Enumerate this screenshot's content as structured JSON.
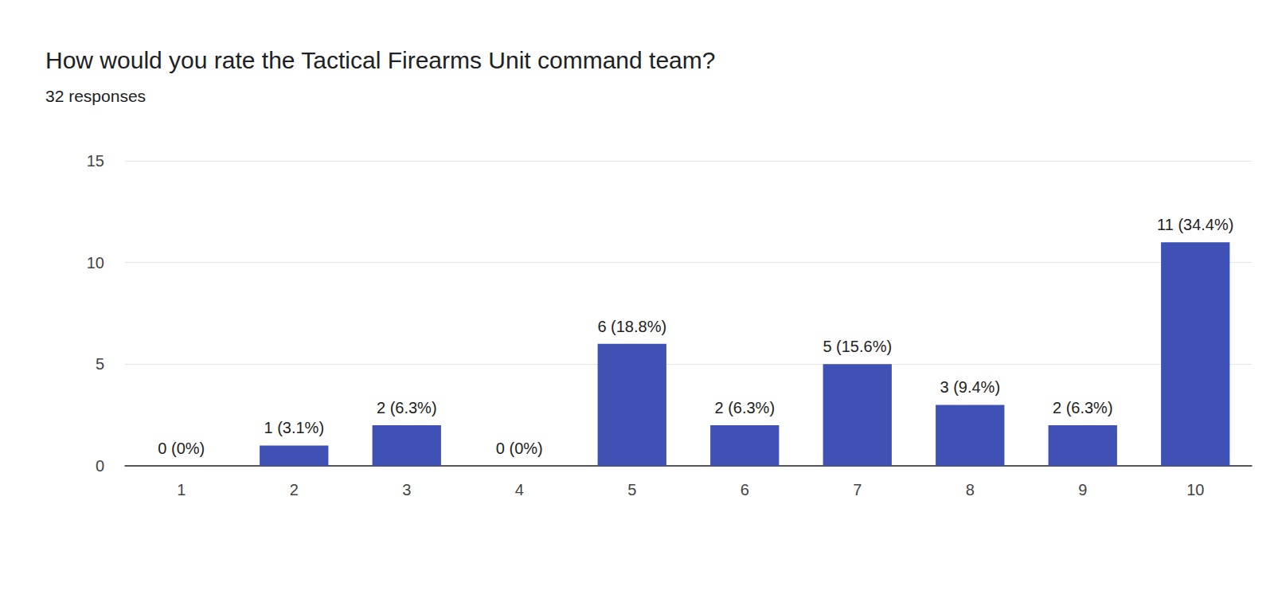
{
  "chart_data": {
    "type": "bar",
    "title": "How would you rate the Tactical Firearms Unit command team?",
    "subtitle": "32 responses",
    "categories": [
      "1",
      "2",
      "3",
      "4",
      "5",
      "6",
      "7",
      "8",
      "9",
      "10"
    ],
    "values": [
      0,
      1,
      2,
      0,
      6,
      2,
      5,
      3,
      2,
      11
    ],
    "value_labels": [
      "0 (0%)",
      "1 (3.1%)",
      "2 (6.3%)",
      "0 (0%)",
      "6 (18.8%)",
      "2 (6.3%)",
      "5 (15.6%)",
      "3 (9.4%)",
      "2 (6.3%)",
      "11 (34.4%)"
    ],
    "color": "#3f51b5",
    "ylim": [
      0,
      15
    ],
    "yticks": [
      0,
      5,
      10,
      15
    ],
    "grid": true,
    "data_labels": true
  }
}
